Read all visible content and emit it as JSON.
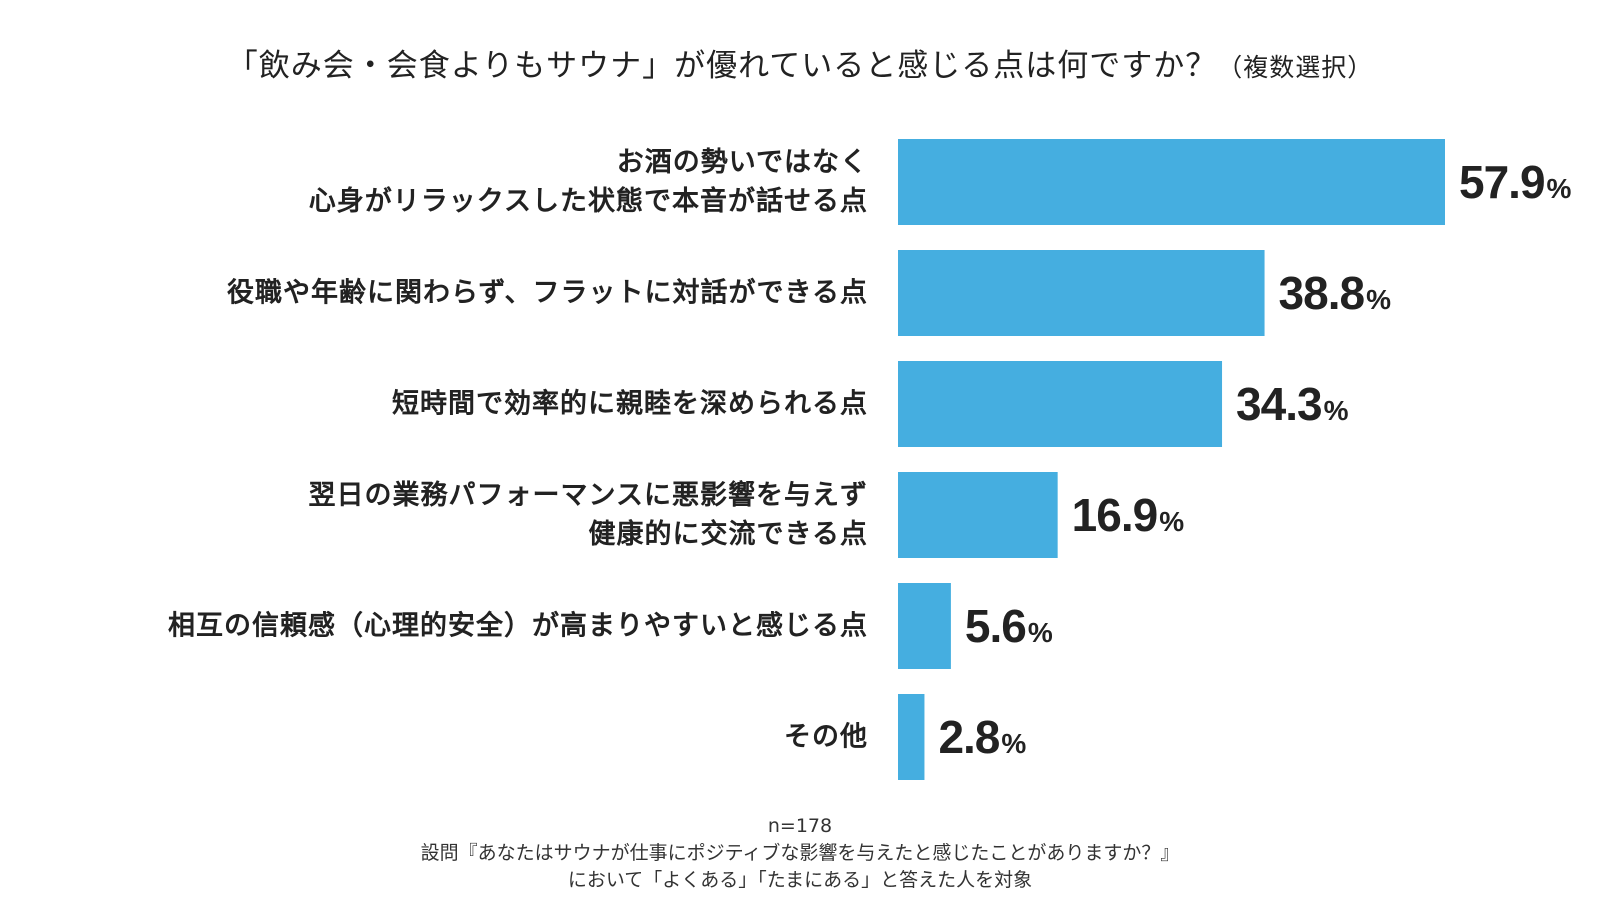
{
  "chart_data": {
    "type": "bar",
    "orientation": "horizontal",
    "title": "「飲み会・会食よりもサウナ」が優れていると感じる点は何ですか？",
    "title_suffix": "（複数選択）",
    "categories": [
      [
        "お酒の勢いではなく",
        "心身がリラックスした状態で本音が話せる点"
      ],
      [
        "役職や年齢に関わらず、フラットに対話ができる点"
      ],
      [
        "短時間で効率的に親睦を深められる点"
      ],
      [
        "翌日の業務パフォーマンスに悪影響を与えず",
        "健康的に交流できる点"
      ],
      [
        "相互の信頼感（心理的安全）が高まりやすいと感じる点"
      ],
      [
        "その他"
      ]
    ],
    "values": [
      57.9,
      38.8,
      34.3,
      16.9,
      5.6,
      2.8
    ],
    "value_labels": [
      "57.9",
      "38.8",
      "34.3",
      "16.9",
      "5.6",
      "2.8"
    ],
    "unit": "%",
    "bar_color": "#45aee0",
    "grid": false,
    "legend": "none"
  },
  "footnote": {
    "sample": "n=178",
    "line1": "設問『あなたはサウナが仕事にポジティブな影響を与えたと感じたことがありますか？』",
    "line2": "において「よくある」「たまにある」と答えた人を対象"
  }
}
